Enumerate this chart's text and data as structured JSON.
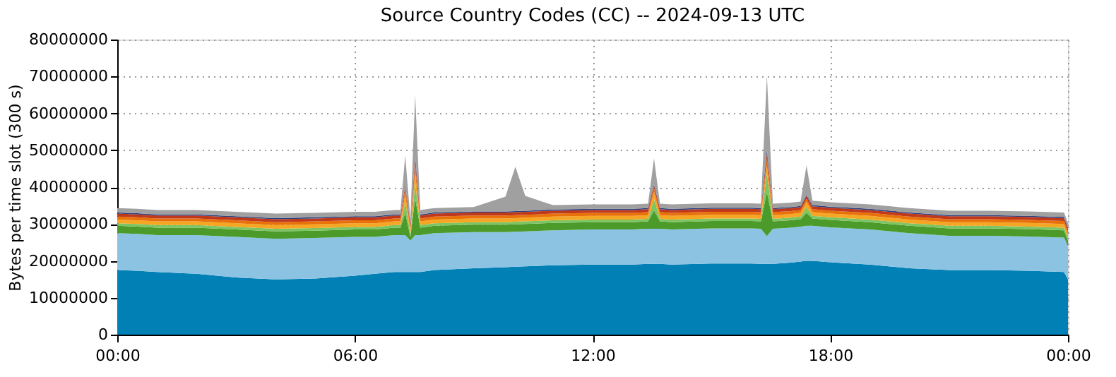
{
  "chart_data": {
    "type": "area",
    "title": "Source Country Codes (CC) -- 2024-09-13 UTC",
    "ylabel": "Bytes per time slot (300 s)",
    "stacked": true,
    "grid": true,
    "legend": false,
    "x": [
      0,
      0.5,
      1,
      2,
      3,
      4,
      5,
      6,
      6.5,
      7,
      7.15,
      7.27,
      7.4,
      7.52,
      7.65,
      8,
      9,
      9.8,
      10.05,
      10.3,
      11,
      12,
      13,
      13.4,
      13.55,
      13.7,
      14,
      15,
      16,
      16.25,
      16.4,
      16.55,
      17,
      17.25,
      17.4,
      17.55,
      18,
      19,
      20,
      21,
      22,
      23,
      23.9,
      24
    ],
    "xlim": [
      0,
      24
    ],
    "xticks": [
      {
        "value": 0,
        "label": "00:00"
      },
      {
        "value": 6,
        "label": "06:00"
      },
      {
        "value": 12,
        "label": "12:00"
      },
      {
        "value": 18,
        "label": "18:00"
      },
      {
        "value": 24,
        "label": "00:00"
      }
    ],
    "ylim": [
      0,
      80000000
    ],
    "yticks": [
      0,
      10000000,
      20000000,
      30000000,
      40000000,
      50000000,
      60000000,
      70000000,
      80000000
    ],
    "series": [
      {
        "color": "#0080b4",
        "values": [
          17500000,
          17300000,
          17000000,
          16500000,
          15500000,
          15000000,
          15200000,
          16000000,
          16500000,
          17000000,
          17000000,
          17000000,
          17000000,
          17000000,
          17000000,
          17500000,
          18000000,
          18300000,
          18400000,
          18500000,
          18800000,
          19000000,
          19000000,
          19200000,
          19200000,
          19200000,
          19000000,
          19300000,
          19300000,
          19200000,
          19200000,
          19200000,
          19500000,
          19800000,
          20000000,
          20000000,
          19600000,
          19000000,
          18000000,
          17500000,
          17500000,
          17300000,
          17000000,
          15000000
        ]
      },
      {
        "color": "#8cc3e3",
        "values": [
          10000000,
          10000000,
          10000000,
          10500000,
          11000000,
          11000000,
          11000000,
          10500000,
          10000000,
          10000000,
          10000000,
          10000000,
          8500000,
          10000000,
          10000000,
          10000000,
          9800000,
          9500000,
          9500000,
          9500000,
          9500000,
          9500000,
          9500000,
          9500000,
          9500000,
          9500000,
          9500000,
          9500000,
          9500000,
          9500000,
          7500000,
          9500000,
          9500000,
          9500000,
          9500000,
          9500000,
          9500000,
          9500000,
          9500000,
          9300000,
          9300000,
          9300000,
          9300000,
          9000000
        ]
      },
      {
        "color": "#4c9a2a",
        "values": [
          2000000,
          2000000,
          2000000,
          2000000,
          2000000,
          2000000,
          2000000,
          2000000,
          2000000,
          2000000,
          2000000,
          6000000,
          1000000,
          10000000,
          2000000,
          2000000,
          2000000,
          2000000,
          2000000,
          2000000,
          2000000,
          2000000,
          2000000,
          2000000,
          5000000,
          2000000,
          2000000,
          2000000,
          2000000,
          2000000,
          12000000,
          2000000,
          2000000,
          2000000,
          3500000,
          2000000,
          2000000,
          2000000,
          2000000,
          2000000,
          2000000,
          2000000,
          2000000,
          1500000
        ]
      },
      {
        "color": "#7dc462",
        "values": [
          700000,
          700000,
          700000,
          700000,
          700000,
          700000,
          700000,
          700000,
          700000,
          700000,
          700000,
          3000000,
          700000,
          4000000,
          700000,
          700000,
          700000,
          700000,
          700000,
          700000,
          700000,
          700000,
          700000,
          700000,
          3000000,
          700000,
          700000,
          700000,
          700000,
          700000,
          5000000,
          700000,
          700000,
          700000,
          1500000,
          700000,
          700000,
          700000,
          700000,
          700000,
          700000,
          700000,
          700000,
          700000
        ]
      },
      {
        "color": "#f5a623",
        "values": [
          1000000,
          1000000,
          1000000,
          1000000,
          1000000,
          1000000,
          1000000,
          1000000,
          1000000,
          1000000,
          1000000,
          2000000,
          1000000,
          3000000,
          1000000,
          1000000,
          1000000,
          1000000,
          1000000,
          1000000,
          1000000,
          1000000,
          1000000,
          1000000,
          2000000,
          1000000,
          1000000,
          1000000,
          1000000,
          1000000,
          2000000,
          1000000,
          1000000,
          1000000,
          1500000,
          1000000,
          1000000,
          1000000,
          1000000,
          1000000,
          1000000,
          1000000,
          1000000,
          1000000
        ]
      },
      {
        "color": "#e8710a",
        "values": [
          800000,
          800000,
          800000,
          800000,
          800000,
          800000,
          800000,
          800000,
          800000,
          800000,
          800000,
          1500000,
          800000,
          2000000,
          800000,
          800000,
          800000,
          800000,
          800000,
          800000,
          800000,
          800000,
          800000,
          800000,
          1000000,
          800000,
          800000,
          800000,
          800000,
          800000,
          2000000,
          800000,
          800000,
          800000,
          800000,
          800000,
          800000,
          800000,
          800000,
          800000,
          800000,
          800000,
          800000,
          800000
        ]
      },
      {
        "color": "#c0391b",
        "values": [
          800000,
          800000,
          800000,
          800000,
          800000,
          800000,
          800000,
          800000,
          800000,
          800000,
          800000,
          800000,
          800000,
          1500000,
          800000,
          800000,
          800000,
          800000,
          800000,
          800000,
          800000,
          800000,
          800000,
          800000,
          800000,
          800000,
          800000,
          800000,
          800000,
          800000,
          1500000,
          800000,
          800000,
          800000,
          800000,
          800000,
          800000,
          800000,
          800000,
          800000,
          800000,
          800000,
          800000,
          800000
        ]
      },
      {
        "color": "#2b3f7f",
        "values": [
          300000,
          300000,
          300000,
          300000,
          300000,
          300000,
          300000,
          300000,
          300000,
          300000,
          300000,
          300000,
          300000,
          1000000,
          300000,
          300000,
          300000,
          300000,
          300000,
          300000,
          300000,
          300000,
          300000,
          300000,
          300000,
          300000,
          300000,
          300000,
          300000,
          300000,
          1000000,
          300000,
          300000,
          300000,
          300000,
          300000,
          300000,
          300000,
          300000,
          300000,
          300000,
          300000,
          300000,
          300000
        ]
      },
      {
        "color": "#a0a0a0",
        "values": [
          1200000,
          1200000,
          1200000,
          1200000,
          1200000,
          1200000,
          1200000,
          1200000,
          1200000,
          1200000,
          1200000,
          8000000,
          1200000,
          16500000,
          1200000,
          1200000,
          1200000,
          4000000,
          12000000,
          4000000,
          1200000,
          1200000,
          1200000,
          1200000,
          7000000,
          1200000,
          1200000,
          1200000,
          1200000,
          1200000,
          20000000,
          1200000,
          1200000,
          1200000,
          8000000,
          1200000,
          1200000,
          1200000,
          1200000,
          1200000,
          1200000,
          1200000,
          1200000,
          1200000
        ]
      }
    ]
  }
}
